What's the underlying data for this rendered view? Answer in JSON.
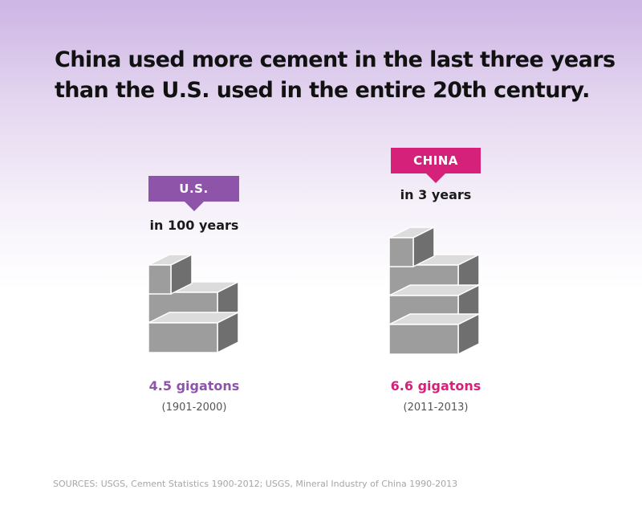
{
  "title_lines": [
    "China used more cement in the last three years",
    "than the U.S. used in the entire 20th century."
  ],
  "colors": {
    "us": "#8e54a9",
    "china": "#d6217b",
    "block_face": "#9d9d9d"
  },
  "chart_data": {
    "type": "bar",
    "title": "China used more cement in the last three years than the U.S. used in the entire 20th century.",
    "categories": [
      "U.S.",
      "CHINA"
    ],
    "values": [
      4.5,
      6.6
    ],
    "unit": "gigatons",
    "series": [
      {
        "label": "U.S.",
        "period": "in 100 years",
        "value": 4.5,
        "value_label": "4.5 gigatons",
        "range": "(1901-2000)",
        "color": "#8e54a9"
      },
      {
        "label": "CHINA",
        "period": "in 3 years",
        "value": 6.6,
        "value_label": "6.6 gigatons",
        "range": "(2011-2013)",
        "color": "#d6217b"
      }
    ]
  },
  "source": "SOURCES: USGS, Cement Statistics 1900-2012; USGS, Mineral Industry of China 1990-2013"
}
